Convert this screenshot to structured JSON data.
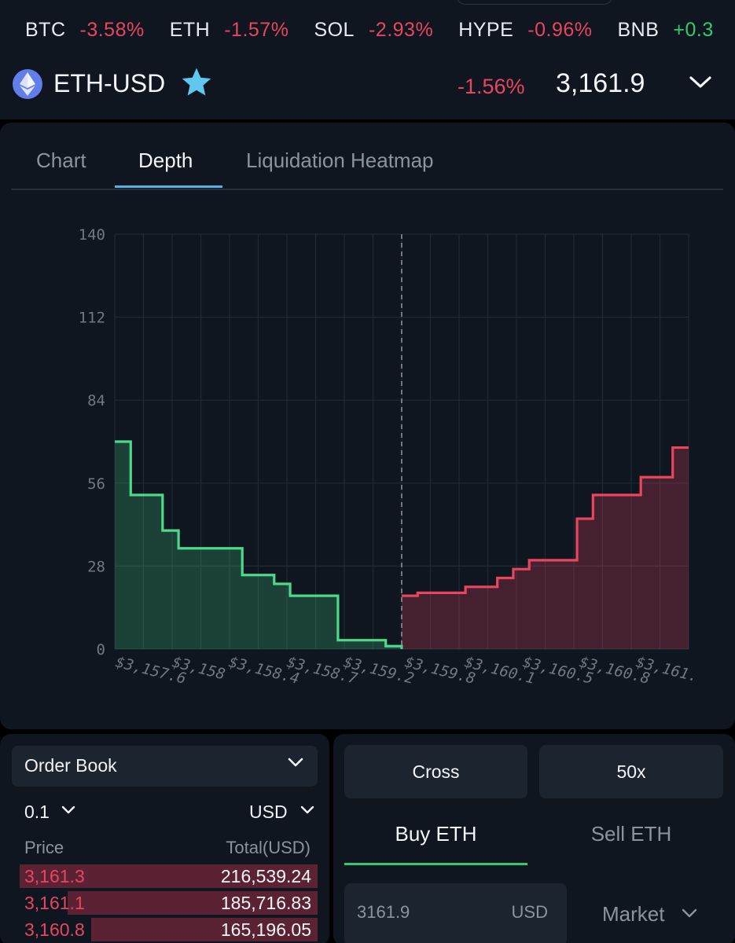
{
  "ticker": [
    {
      "symbol": "BTC",
      "change": "-3.58%",
      "dir": "neg"
    },
    {
      "symbol": "ETH",
      "change": "-1.57%",
      "dir": "neg"
    },
    {
      "symbol": "SOL",
      "change": "-2.93%",
      "dir": "neg"
    },
    {
      "symbol": "HYPE",
      "change": "-0.96%",
      "dir": "neg"
    },
    {
      "symbol": "BNB",
      "change": "+0.3",
      "dir": "pos"
    }
  ],
  "pair": {
    "name": "ETH-USD",
    "change": "-1.56%",
    "price": "3,161.9"
  },
  "tabs": [
    "Chart",
    "Depth",
    "Liquidation Heatmap"
  ],
  "active_tab": "Depth",
  "chart_data": {
    "type": "area",
    "y_ticks": [
      "140",
      "112",
      "84",
      "56",
      "28",
      "0"
    ],
    "ylim": [
      0,
      140
    ],
    "x_tick_labels": [
      "$3,157.6",
      "$3,158",
      "$3,158.4",
      "$3,158.7",
      "$3,159.2",
      "$3,159.8",
      "$3,160.1",
      "$3,160.5",
      "$3,160.8",
      "$3,161."
    ],
    "xlim": [
      3157.6,
      3161.2
    ],
    "mid_price": 3159.4,
    "series": [
      {
        "side": "bids",
        "color": "#4cd98a",
        "x": [
          3157.6,
          3157.7,
          3157.9,
          3158.0,
          3158.4,
          3158.6,
          3158.7,
          3159.0,
          3159.3,
          3159.4
        ],
        "values": [
          70,
          52,
          40,
          34,
          25,
          22,
          18,
          3,
          1,
          0
        ]
      },
      {
        "side": "asks",
        "color": "#e8455f",
        "x": [
          3159.4,
          3159.5,
          3159.8,
          3160.0,
          3160.1,
          3160.2,
          3160.5,
          3160.6,
          3160.9,
          3161.1,
          3161.2
        ],
        "values": [
          18,
          19,
          21,
          24,
          27,
          30,
          44,
          52,
          58,
          68,
          68
        ]
      }
    ]
  },
  "order_book": {
    "selector_label": "Order Book",
    "tick_size": "0.1",
    "unit": "USD",
    "col_price": "Price",
    "col_total": "Total(USD)",
    "asks": [
      {
        "price": "3,161.3",
        "total": "216,539.24",
        "depth": 1.0
      },
      {
        "price": "3,161.1",
        "total": "185,716.83",
        "depth": 0.84
      },
      {
        "price": "3,160.8",
        "total": "165,196.05",
        "depth": 0.76
      }
    ]
  },
  "trade": {
    "margin_mode": "Cross",
    "leverage": "50x",
    "buy_label": "Buy ETH",
    "sell_label": "Sell ETH",
    "price_value": "3161.9",
    "price_unit": "USD",
    "order_type": "Market"
  },
  "colors": {
    "background": "#0f1620",
    "accent_tab": "#4fb3e6",
    "bid": "#4cd98a",
    "ask": "#e8455f"
  }
}
